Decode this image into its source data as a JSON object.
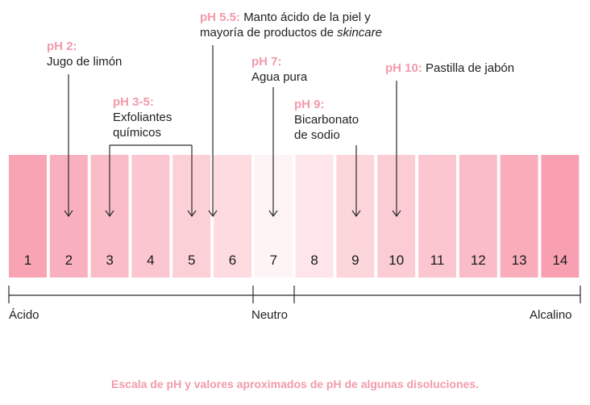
{
  "scale": {
    "boxes": [
      {
        "label": "1",
        "color": "#f8a4b4"
      },
      {
        "label": "2",
        "color": "#f9b0be"
      },
      {
        "label": "3",
        "color": "#fabcc7"
      },
      {
        "label": "4",
        "color": "#fbc6cf"
      },
      {
        "label": "5",
        "color": "#fcd0d7"
      },
      {
        "label": "6",
        "color": "#fddbe0"
      },
      {
        "label": "7",
        "color": "#fef4f5"
      },
      {
        "label": "8",
        "color": "#fde5e9"
      },
      {
        "label": "9",
        "color": "#fdd6dc"
      },
      {
        "label": "10",
        "color": "#fcccd4"
      },
      {
        "label": "11",
        "color": "#fbc6cf"
      },
      {
        "label": "12",
        "color": "#fabcc7"
      },
      {
        "label": "13",
        "color": "#f9adbb"
      },
      {
        "label": "14",
        "color": "#f8a0b1"
      }
    ],
    "acid_label": "Ácido",
    "neutral_label": "Neutro",
    "alkaline_label": "Alcalino"
  },
  "annotations": {
    "ph2": {
      "ph": "pH 2:",
      "line1": "Jugo de limón"
    },
    "ph35": {
      "ph": "pH 3-5:",
      "line1": "Exfoliantes",
      "line2": "químicos"
    },
    "ph55": {
      "ph": "pH 5.5:",
      "text1": "Manto ácido de la piel y",
      "line2": "mayoría de productos de ",
      "line2_em": "skincare"
    },
    "ph7": {
      "ph": "pH 7:",
      "line1": "Agua pura"
    },
    "ph9": {
      "ph": "pH 9:",
      "line1": "Bicarbonato",
      "line2": "de sodio"
    },
    "ph10": {
      "ph": "pH 10:",
      "text1": "Pastilla de jabón"
    }
  },
  "caption": "Escala de pH y valores aproximados de pH de algunas disoluciones.",
  "accent_color": "#f29aab"
}
